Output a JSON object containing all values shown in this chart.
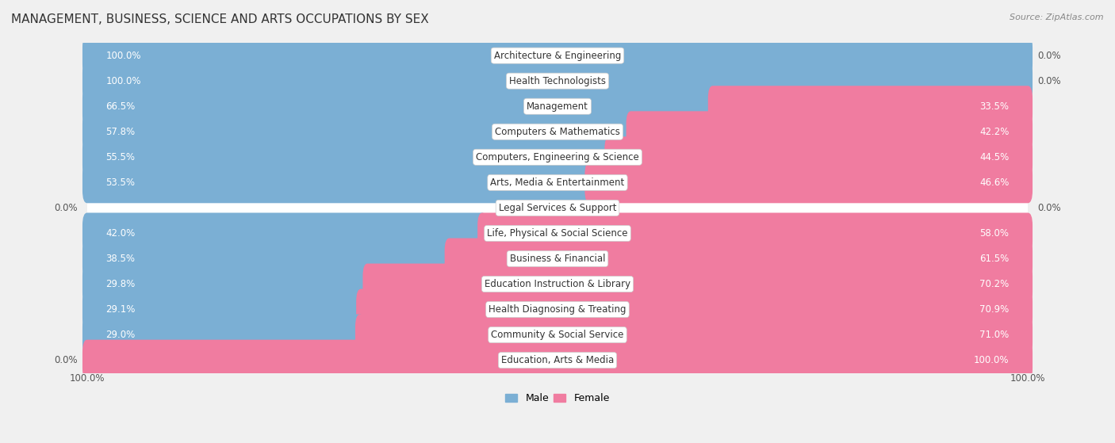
{
  "title": "MANAGEMENT, BUSINESS, SCIENCE AND ARTS OCCUPATIONS BY SEX",
  "source": "Source: ZipAtlas.com",
  "categories": [
    "Architecture & Engineering",
    "Health Technologists",
    "Management",
    "Computers & Mathematics",
    "Computers, Engineering & Science",
    "Arts, Media & Entertainment",
    "Legal Services & Support",
    "Life, Physical & Social Science",
    "Business & Financial",
    "Education Instruction & Library",
    "Health Diagnosing & Treating",
    "Community & Social Service",
    "Education, Arts & Media"
  ],
  "male": [
    100.0,
    100.0,
    66.5,
    57.8,
    55.5,
    53.5,
    0.0,
    42.0,
    38.5,
    29.8,
    29.1,
    29.0,
    0.0
  ],
  "female": [
    0.0,
    0.0,
    33.5,
    42.2,
    44.5,
    46.6,
    0.0,
    58.0,
    61.5,
    70.2,
    70.9,
    71.0,
    100.0
  ],
  "male_color": "#7bafd4",
  "female_color": "#f07ca0",
  "background_color": "#f0f0f0",
  "row_color_odd": "#ffffff",
  "row_color_even": "#e8e8e8",
  "title_fontsize": 11,
  "label_fontsize": 8.5,
  "value_fontsize": 8.5,
  "bar_height": 0.62,
  "figsize": [
    14.06,
    5.59
  ]
}
